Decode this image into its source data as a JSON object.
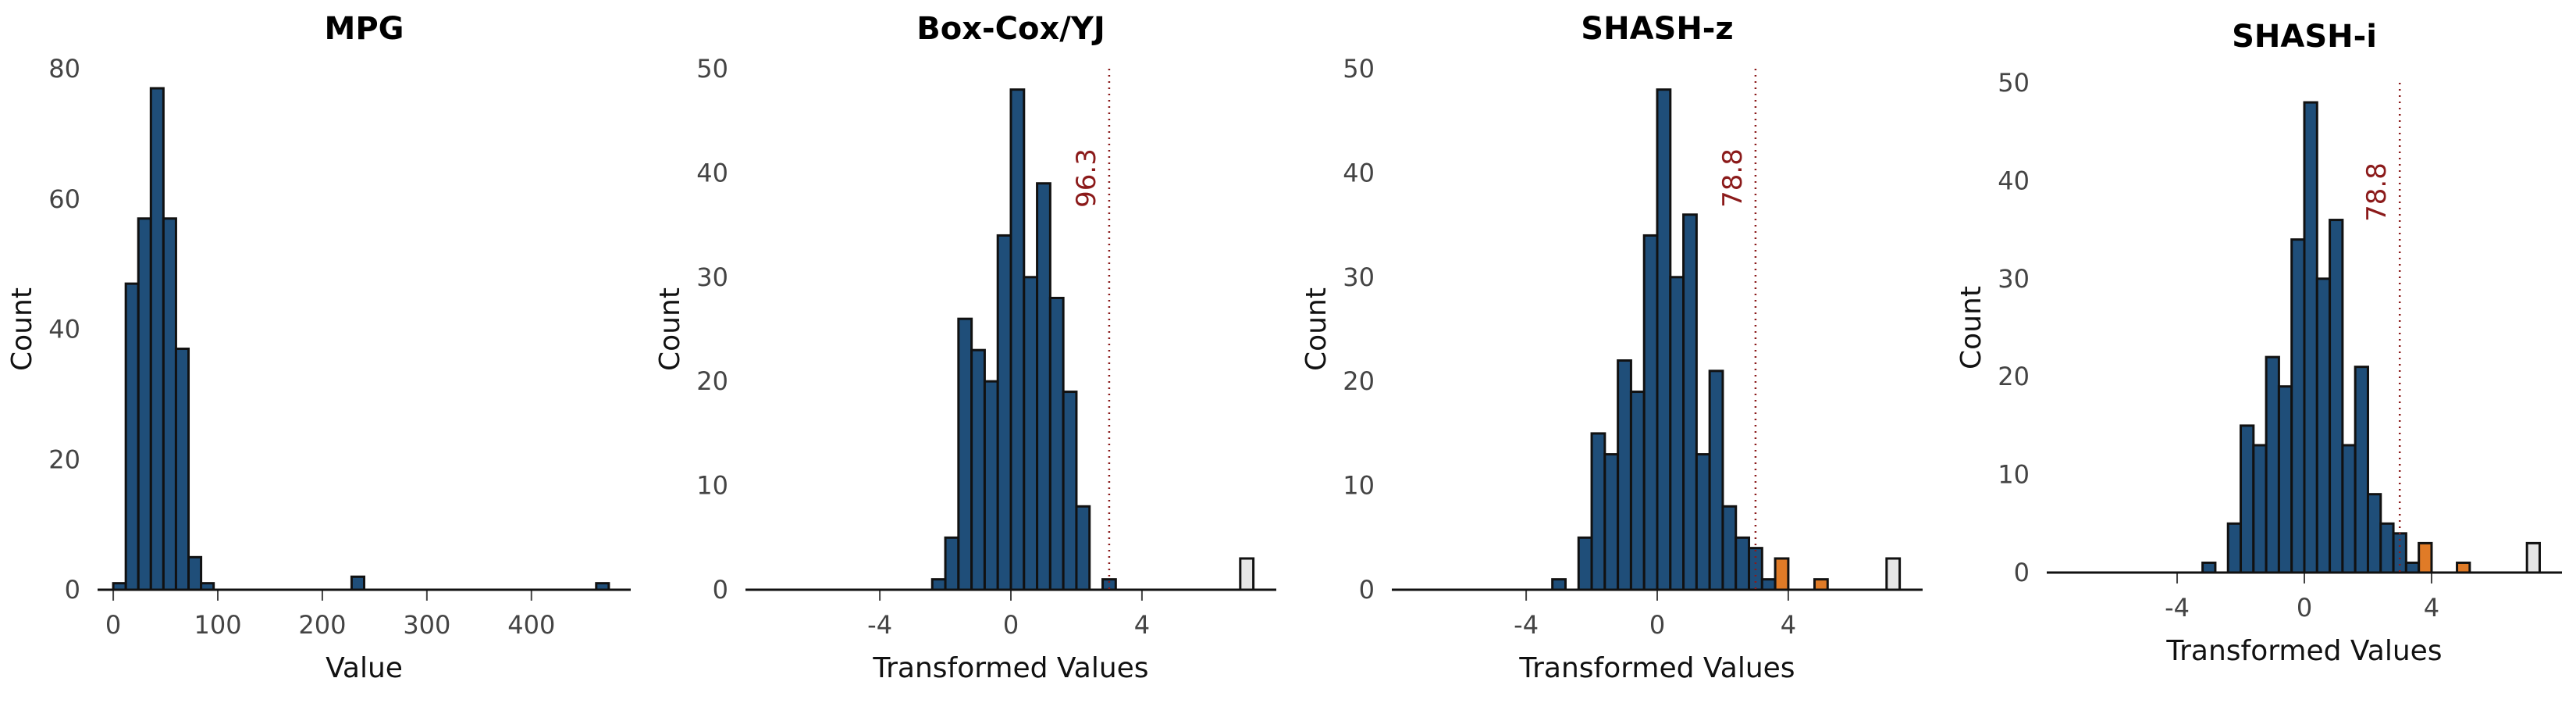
{
  "chart_data": [
    {
      "type": "bar",
      "title": "MPG",
      "xlabel": "Value",
      "ylabel": "Count",
      "xlim": [
        -15,
        495
      ],
      "ylim": [
        0,
        80
      ],
      "xticks": [
        0,
        100,
        200,
        300,
        400
      ],
      "yticks": [
        0,
        20,
        40,
        60,
        80
      ],
      "bin_width": 12,
      "bins": [
        {
          "x": 6,
          "count": 1,
          "status": "normal"
        },
        {
          "x": 18,
          "count": 47,
          "status": "normal"
        },
        {
          "x": 30,
          "count": 57,
          "status": "normal"
        },
        {
          "x": 42,
          "count": 77,
          "status": "normal"
        },
        {
          "x": 54,
          "count": 57,
          "status": "normal"
        },
        {
          "x": 66,
          "count": 37,
          "status": "normal"
        },
        {
          "x": 78,
          "count": 5,
          "status": "normal"
        },
        {
          "x": 90,
          "count": 1,
          "status": "normal"
        },
        {
          "x": 234,
          "count": 2,
          "status": "normal"
        },
        {
          "x": 468,
          "count": 1,
          "status": "normal"
        }
      ]
    },
    {
      "type": "bar",
      "title": "Box-Cox/YJ",
      "xlabel": "Transformed Values",
      "ylabel": "Count",
      "xlim": [
        -8.1,
        8.1
      ],
      "ylim": [
        0,
        50
      ],
      "xticks": [
        -4,
        0,
        4
      ],
      "yticks": [
        0,
        10,
        20,
        30,
        40,
        50
      ],
      "bin_width": 0.4,
      "threshold": {
        "x": 3,
        "label": "96.3"
      },
      "bins": [
        {
          "x": -2.2,
          "count": 1,
          "status": "normal"
        },
        {
          "x": -1.8,
          "count": 5,
          "status": "normal"
        },
        {
          "x": -1.4,
          "count": 26,
          "status": "normal"
        },
        {
          "x": -1.0,
          "count": 23,
          "status": "normal"
        },
        {
          "x": -0.6,
          "count": 20,
          "status": "normal"
        },
        {
          "x": -0.2,
          "count": 34,
          "status": "normal"
        },
        {
          "x": 0.2,
          "count": 48,
          "status": "normal"
        },
        {
          "x": 0.6,
          "count": 30,
          "status": "normal"
        },
        {
          "x": 1.0,
          "count": 39,
          "status": "normal"
        },
        {
          "x": 1.4,
          "count": 28,
          "status": "normal"
        },
        {
          "x": 1.8,
          "count": 19,
          "status": "normal"
        },
        {
          "x": 2.2,
          "count": 8,
          "status": "normal"
        },
        {
          "x": 2.6,
          "count": 0,
          "status": "normal"
        },
        {
          "x": 3.0,
          "count": 1,
          "status": "normal"
        },
        {
          "x": 7.2,
          "count": 3,
          "status": "extreme"
        }
      ]
    },
    {
      "type": "bar",
      "title": "SHASH-z",
      "xlabel": "Transformed Values",
      "ylabel": "Count",
      "xlim": [
        -8.1,
        8.1
      ],
      "ylim": [
        0,
        50
      ],
      "xticks": [
        -4,
        0,
        4
      ],
      "yticks": [
        0,
        10,
        20,
        30,
        40,
        50
      ],
      "bin_width": 0.4,
      "threshold": {
        "x": 3,
        "label": "78.8"
      },
      "bins": [
        {
          "x": -3.0,
          "count": 1,
          "status": "normal"
        },
        {
          "x": -2.6,
          "count": 0,
          "status": "normal"
        },
        {
          "x": -2.2,
          "count": 5,
          "status": "normal"
        },
        {
          "x": -1.8,
          "count": 15,
          "status": "normal"
        },
        {
          "x": -1.4,
          "count": 13,
          "status": "normal"
        },
        {
          "x": -1.0,
          "count": 22,
          "status": "normal"
        },
        {
          "x": -0.6,
          "count": 19,
          "status": "normal"
        },
        {
          "x": -0.2,
          "count": 34,
          "status": "normal"
        },
        {
          "x": 0.2,
          "count": 48,
          "status": "normal"
        },
        {
          "x": 0.6,
          "count": 30,
          "status": "normal"
        },
        {
          "x": 1.0,
          "count": 36,
          "status": "normal"
        },
        {
          "x": 1.4,
          "count": 13,
          "status": "normal"
        },
        {
          "x": 1.8,
          "count": 21,
          "status": "normal"
        },
        {
          "x": 2.2,
          "count": 8,
          "status": "normal"
        },
        {
          "x": 2.6,
          "count": 5,
          "status": "normal"
        },
        {
          "x": 3.0,
          "count": 4,
          "status": "normal"
        },
        {
          "x": 3.4,
          "count": 1,
          "status": "normal"
        },
        {
          "x": 3.8,
          "count": 3,
          "status": "outlier"
        },
        {
          "x": 5.0,
          "count": 1,
          "status": "outlier"
        },
        {
          "x": 7.2,
          "count": 3,
          "status": "extreme"
        }
      ]
    },
    {
      "type": "bar",
      "title": "SHASH-i",
      "xlabel": "Transformed Values",
      "ylabel": "Count",
      "xlim": [
        -8.1,
        8.1
      ],
      "ylim": [
        0,
        50
      ],
      "xticks": [
        -4,
        0,
        4
      ],
      "yticks": [
        0,
        10,
        20,
        30,
        40,
        50
      ],
      "bin_width": 0.4,
      "threshold": {
        "x": 3,
        "label": "78.8"
      },
      "bins": [
        {
          "x": -3.0,
          "count": 1,
          "status": "normal"
        },
        {
          "x": -2.6,
          "count": 0,
          "status": "normal"
        },
        {
          "x": -2.2,
          "count": 5,
          "status": "normal"
        },
        {
          "x": -1.8,
          "count": 15,
          "status": "normal"
        },
        {
          "x": -1.4,
          "count": 13,
          "status": "normal"
        },
        {
          "x": -1.0,
          "count": 22,
          "status": "normal"
        },
        {
          "x": -0.6,
          "count": 19,
          "status": "normal"
        },
        {
          "x": -0.2,
          "count": 34,
          "status": "normal"
        },
        {
          "x": 0.2,
          "count": 48,
          "status": "normal"
        },
        {
          "x": 0.6,
          "count": 30,
          "status": "normal"
        },
        {
          "x": 1.0,
          "count": 36,
          "status": "normal"
        },
        {
          "x": 1.4,
          "count": 13,
          "status": "normal"
        },
        {
          "x": 1.8,
          "count": 21,
          "status": "normal"
        },
        {
          "x": 2.2,
          "count": 8,
          "status": "normal"
        },
        {
          "x": 2.6,
          "count": 5,
          "status": "normal"
        },
        {
          "x": 3.0,
          "count": 4,
          "status": "normal"
        },
        {
          "x": 3.4,
          "count": 1,
          "status": "normal"
        },
        {
          "x": 3.8,
          "count": 3,
          "status": "outlier"
        },
        {
          "x": 5.0,
          "count": 1,
          "status": "outlier"
        },
        {
          "x": 7.2,
          "count": 3,
          "status": "extreme"
        }
      ]
    }
  ],
  "colors": {
    "normal": "#1f4e79",
    "outlier": "#e07b27",
    "extreme": "#e6e6e6",
    "edge": "#111111",
    "threshold": "#8b1a1a"
  }
}
